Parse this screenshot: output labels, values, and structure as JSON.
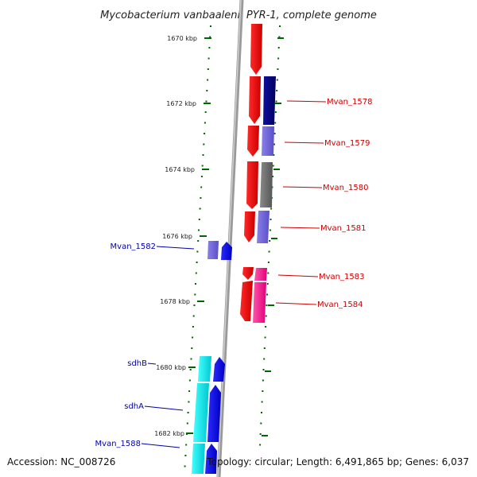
{
  "title": "Mycobacterium vanbaalenii PYR-1, complete genome",
  "footer": {
    "accession": "Accession: NC_008726",
    "stats": "Topology: circular; Length: 6,491,865 bp; Genes: 6,037"
  },
  "scale_labels": [
    "1670 kbp",
    "1672 kbp",
    "1674 kbp",
    "1676 kbp",
    "1678 kbp",
    "1680 kbp",
    "1682 kbp"
  ],
  "right_genes": [
    "Mvan_1578",
    "Mvan_1579",
    "Mvan_1580",
    "Mvan_1581",
    "Mvan_1583",
    "Mvan_1584"
  ],
  "left_genes": [
    "Mvan_1582",
    "sdhB",
    "sdhA",
    "Mvan_1588"
  ],
  "colors": {
    "right_label": "#cc0000",
    "left_label": "#0000aa",
    "tick": "#006600",
    "axis": "#888888"
  }
}
